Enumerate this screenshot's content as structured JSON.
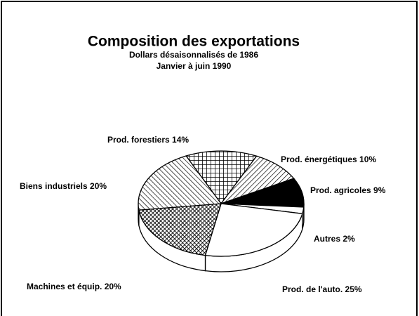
{
  "chart_data": {
    "type": "pie",
    "title": "Composition des exportations",
    "subtitle": [
      "Dollars désaisonnalisés de 1986",
      "Janvier à juin 1990"
    ],
    "categories": [
      "Prod. forestiers",
      "Prod. énergétiques",
      "Prod. agricoles",
      "Autres",
      "Prod. de l'auto.",
      "Machines et équip.",
      "Biens industriels"
    ],
    "values": [
      14,
      10,
      9,
      2,
      25,
      20,
      20
    ],
    "value_labels": [
      "14%",
      "10%",
      "9%",
      "2%",
      "25%",
      "20%",
      "20%"
    ]
  }
}
